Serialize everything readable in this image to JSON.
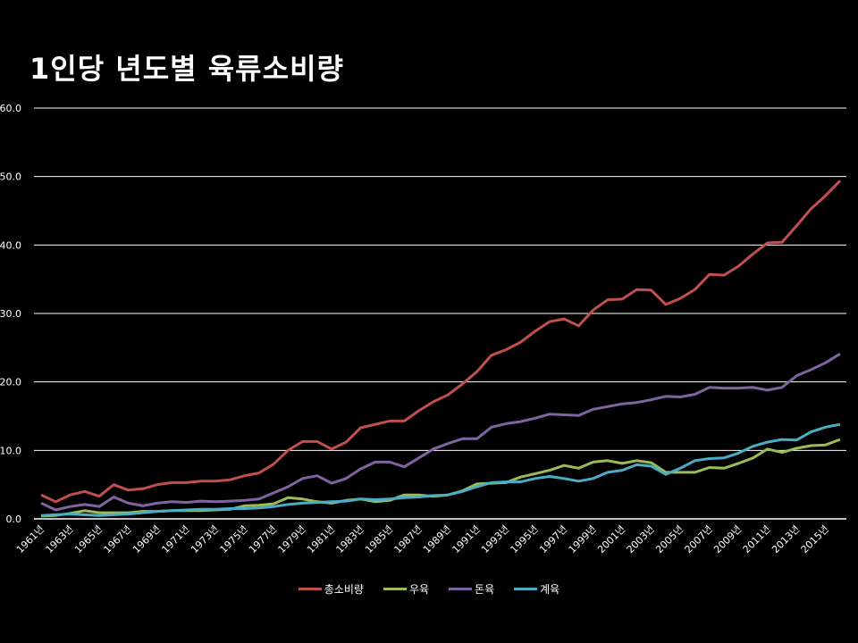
{
  "title": "1인당 년도별 육류소비량",
  "colors": {
    "background": "#000000",
    "gridline": "#ffffff",
    "total": "#c0504d",
    "beef": "#9bbb59",
    "pork": "#8064a2",
    "chicken": "#4bacc6"
  },
  "legend": [
    {
      "label": "총소비량",
      "color": "#c0504d"
    },
    {
      "label": "우육",
      "color": "#9bbb59"
    },
    {
      "label": "돈육",
      "color": "#8064a2"
    },
    {
      "label": "계육",
      "color": "#4bacc6"
    }
  ],
  "chart_data": {
    "type": "line",
    "title": "1인당 년도별 육류소비량",
    "xlabel": "",
    "ylabel": "",
    "ylim": [
      0,
      60
    ],
    "yticks": [
      "0.0",
      "10.0",
      "20.0",
      "30.0",
      "40.0",
      "50.0",
      "60.0"
    ],
    "grid": true,
    "legend_position": "bottom",
    "x": [
      1961,
      1962,
      1963,
      1964,
      1965,
      1966,
      1967,
      1968,
      1969,
      1970,
      1971,
      1972,
      1973,
      1974,
      1975,
      1976,
      1977,
      1978,
      1979,
      1980,
      1981,
      1982,
      1983,
      1984,
      1985,
      1986,
      1987,
      1988,
      1989,
      1990,
      1991,
      1992,
      1993,
      1994,
      1995,
      1996,
      1997,
      1998,
      1999,
      2000,
      2001,
      2002,
      2003,
      2004,
      2005,
      2006,
      2007,
      2008,
      2009,
      2010,
      2011,
      2012,
      2013,
      2014,
      2015,
      2016
    ],
    "xtick_labels": [
      "1961년",
      "1963년",
      "1965년",
      "1967년",
      "1969년",
      "1971년",
      "1973년",
      "1975년",
      "1977년",
      "1979년",
      "1981년",
      "1983년",
      "1985년",
      "1987년",
      "1989년",
      "1991년",
      "1993년",
      "1995년",
      "1997년",
      "1999년",
      "2001년",
      "2003년",
      "2005년",
      "2007년",
      "2009년",
      "2011년",
      "2013년",
      "2015년"
    ],
    "series": [
      {
        "name": "총소비량",
        "color": "#c0504d",
        "values": [
          3.5,
          2.5,
          3.5,
          4.0,
          3.3,
          5.0,
          4.2,
          4.4,
          5.0,
          5.3,
          5.3,
          5.5,
          5.5,
          5.7,
          6.3,
          6.7,
          8.0,
          10.0,
          11.3,
          11.3,
          10.2,
          11.2,
          13.3,
          13.8,
          14.3,
          14.3,
          15.8,
          17.1,
          18.1,
          19.7,
          21.5,
          23.9,
          24.7,
          25.8,
          27.4,
          28.8,
          29.2,
          28.2,
          30.5,
          32.0,
          32.1,
          33.5,
          33.4,
          31.3,
          32.2,
          33.5,
          35.7,
          35.6,
          36.9,
          38.7,
          40.3,
          40.4,
          42.8,
          45.3,
          47.2,
          49.4
        ]
      },
      {
        "name": "우육",
        "color": "#9bbb59",
        "values": [
          0.4,
          0.5,
          0.8,
          1.2,
          0.9,
          0.9,
          0.9,
          1.1,
          1.1,
          1.2,
          1.2,
          1.2,
          1.3,
          1.4,
          1.9,
          2.0,
          2.2,
          3.1,
          2.9,
          2.5,
          2.3,
          2.7,
          2.9,
          2.5,
          2.7,
          3.5,
          3.5,
          3.3,
          3.5,
          4.1,
          5.1,
          5.2,
          5.3,
          6.1,
          6.6,
          7.1,
          7.8,
          7.4,
          8.3,
          8.5,
          8.1,
          8.5,
          8.2,
          6.8,
          6.8,
          6.8,
          7.5,
          7.4,
          8.1,
          8.9,
          10.2,
          9.7,
          10.3,
          10.7,
          10.8,
          11.6
        ]
      },
      {
        "name": "돈육",
        "color": "#8064a2",
        "values": [
          2.3,
          1.3,
          1.8,
          2.1,
          1.8,
          3.2,
          2.3,
          1.9,
          2.3,
          2.5,
          2.4,
          2.6,
          2.5,
          2.6,
          2.7,
          2.9,
          3.8,
          4.7,
          5.9,
          6.3,
          5.2,
          5.9,
          7.3,
          8.3,
          8.3,
          7.6,
          8.9,
          10.2,
          11.0,
          11.7,
          11.7,
          13.4,
          13.9,
          14.2,
          14.7,
          15.3,
          15.2,
          15.1,
          16.0,
          16.4,
          16.8,
          17.0,
          17.4,
          17.9,
          17.8,
          18.2,
          19.2,
          19.1,
          19.1,
          19.2,
          18.8,
          19.2,
          20.9,
          21.8,
          22.8,
          24.1
        ]
      },
      {
        "name": "계육",
        "color": "#4bacc6",
        "values": [
          0.5,
          0.6,
          0.7,
          0.6,
          0.5,
          0.6,
          0.7,
          0.9,
          1.1,
          1.2,
          1.3,
          1.4,
          1.4,
          1.5,
          1.5,
          1.6,
          1.8,
          2.1,
          2.3,
          2.4,
          2.5,
          2.6,
          2.9,
          2.8,
          2.9,
          3.1,
          3.2,
          3.4,
          3.5,
          4.0,
          4.7,
          5.3,
          5.4,
          5.4,
          5.9,
          6.2,
          5.9,
          5.5,
          5.9,
          6.8,
          7.1,
          7.9,
          7.7,
          6.5,
          7.4,
          8.5,
          8.8,
          8.9,
          9.6,
          10.6,
          11.2,
          11.6,
          11.5,
          12.7,
          13.4,
          13.8
        ]
      }
    ]
  }
}
